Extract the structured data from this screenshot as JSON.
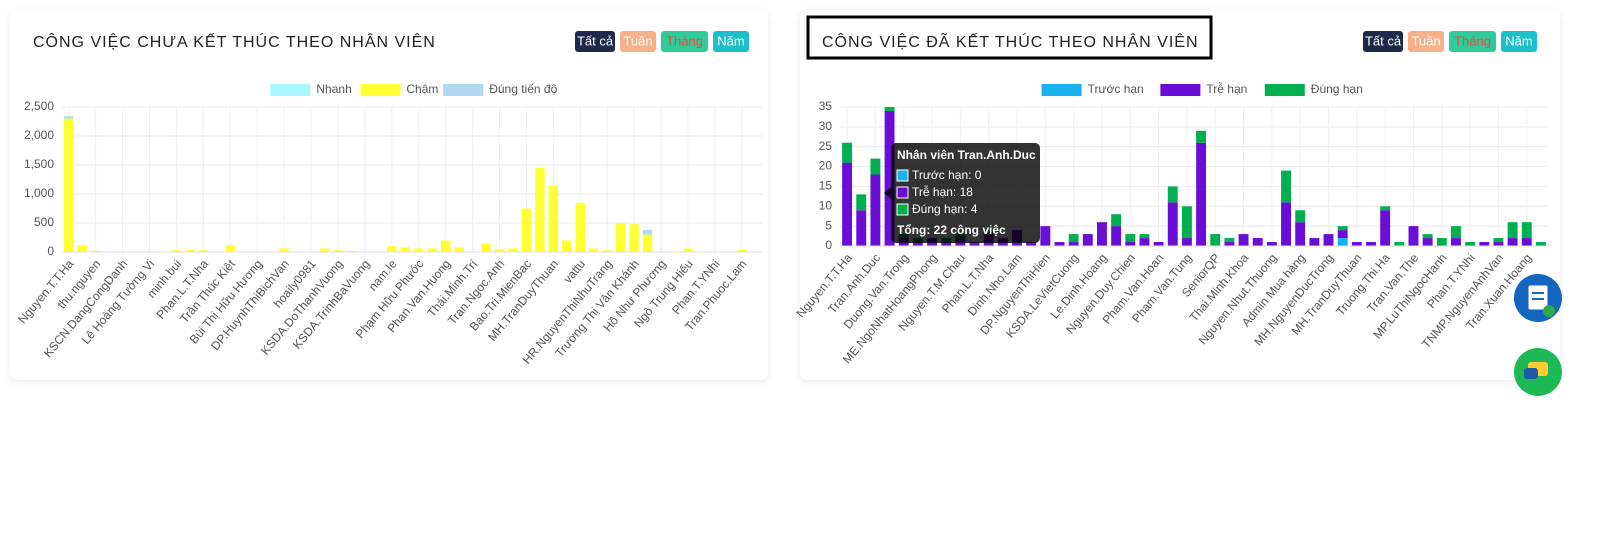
{
  "filters": [
    "Tất cả",
    "Tuần",
    "Tháng",
    "Năm"
  ],
  "chart_data": [
    {
      "type": "bar",
      "stacked": true,
      "title": "CÔNG VIỆC CHƯA KẾT THÚC THEO NHÂN VIÊN",
      "categories": [
        "Nguyen.T.T.Ha",
        null,
        "thu.nguyen",
        null,
        "KSCN.DangCongDanh",
        null,
        "Lê Hoàng Tường Vi",
        null,
        "minh.bui",
        null,
        "Phan.L.T.Nha",
        null,
        "Trần Thúc Kiệt",
        null,
        "Bùi Thị Hữu Hương",
        null,
        "DP.HuynhThiBichVan",
        null,
        "hoaily0981",
        null,
        "KSDA.DoThanhVuong",
        null,
        "KSDA.TrinhBaVuong",
        null,
        "nam.le",
        null,
        "Phạm Hữu Phước",
        null,
        "Phan.Van.Huong",
        null,
        "Thái.Minh.Trí",
        null,
        "Tran.Ngoc.Anh",
        null,
        "Bao.Tri.MienBac",
        null,
        "MH.TranDuyThuan",
        null,
        "vattu",
        null,
        "HR.NguyenThiNhuTrang",
        null,
        "Trương Thị Vân Khánh",
        null,
        "Hồ Như Phương",
        null,
        "Ngô Trung Hiếu",
        null,
        "Phan.T.YNhi",
        null,
        "Tran.Phuoc.Lam",
        null
      ],
      "series": [
        {
          "name": "Nhanh",
          "color": "#aaf6ff",
          "values": [
            0,
            0,
            0,
            0,
            0,
            0,
            0,
            0,
            0,
            0,
            0,
            0,
            0,
            0,
            0,
            0,
            0,
            0,
            0,
            0,
            0,
            0,
            0,
            0,
            0,
            0,
            0,
            0,
            0,
            0,
            0,
            0,
            0,
            0,
            0,
            0,
            0,
            0,
            0,
            0,
            0,
            0,
            0,
            0,
            0,
            0,
            0,
            0,
            0,
            0,
            0,
            0
          ]
        },
        {
          "name": "Chậm",
          "color": "#ffff33",
          "values": [
            2300,
            120,
            20,
            10,
            5,
            5,
            10,
            5,
            30,
            40,
            30,
            10,
            120,
            5,
            5,
            10,
            60,
            5,
            5,
            60,
            30,
            20,
            10,
            5,
            100,
            80,
            60,
            60,
            200,
            80,
            10,
            150,
            50,
            60,
            750,
            1450,
            1150,
            200,
            850,
            60,
            30,
            500,
            480,
            300,
            10,
            5,
            60,
            10,
            5,
            10,
            40,
            10
          ]
        },
        {
          "name": "Đúng tiến độ",
          "color": "#b0d8f0",
          "values": [
            40,
            0,
            0,
            0,
            0,
            0,
            0,
            0,
            0,
            0,
            0,
            0,
            0,
            0,
            0,
            0,
            0,
            0,
            0,
            0,
            0,
            0,
            0,
            0,
            0,
            0,
            0,
            0,
            0,
            0,
            0,
            0,
            0,
            0,
            0,
            0,
            0,
            0,
            0,
            0,
            0,
            0,
            0,
            80,
            0,
            0,
            0,
            0,
            0,
            0,
            0,
            0
          ]
        }
      ],
      "ylim": [
        0,
        2500
      ],
      "yticks": [
        0,
        500,
        {
          "value": 1000,
          "label": "1,000"
        },
        {
          "value": 1500,
          "label": "1,500"
        },
        {
          "value": 2000,
          "label": "2,000"
        },
        {
          "value": 2500,
          "label": "2,500"
        }
      ],
      "grid": true,
      "legend": "top"
    },
    {
      "type": "bar",
      "stacked": true,
      "title": "CÔNG VIỆC ĐÃ KẾT THÚC THEO NHÂN VIÊN",
      "categories": [
        "Nguyen.T.T.Ha",
        null,
        "Tran.Anh.Duc",
        null,
        "Duong.Van.Trong",
        null,
        "ME.NgoNhatHoangPhong",
        null,
        "Nguyen.T.M.Chau",
        null,
        "Phan.L.T.Nha",
        null,
        "Dinh.Nho.Lam",
        null,
        "DP.NguyenThiHien",
        null,
        "KSDA.LeVietCuong",
        null,
        "Le.Dinh.Hoang",
        null,
        "Nguyen.Duy.Chien",
        null,
        "Pham.Van.Hoan",
        null,
        "Pham.Van.Tung",
        null,
        "SeniorQP",
        null,
        "Thai.Minh.Khoa",
        null,
        "Nguyen.Nhut.Thuong",
        null,
        "Admin Mua hàng",
        null,
        "MH.NguyenDucTrong",
        null,
        "MH.TranDuyThuan",
        null,
        "Truong.Thi.Ha",
        null,
        "Tran.Van.The",
        null,
        "MP.LuThiNgocHanh",
        null,
        "Phan.T.YNhi",
        null,
        "TNMP.NguyenAnhVan",
        null,
        "Tran.Xuan.Hoang",
        null
      ],
      "series": [
        {
          "name": "Trước hạn",
          "color": "#1ab2ee",
          "values": [
            0,
            0,
            0,
            0,
            0,
            0,
            0,
            0,
            0,
            0,
            0,
            0,
            0,
            0,
            0,
            0,
            0,
            0,
            0,
            0,
            0,
            0,
            0,
            0,
            0,
            0,
            0,
            0,
            0,
            0,
            0,
            0,
            0,
            0,
            0,
            2,
            0,
            0,
            0,
            0,
            0,
            0,
            0,
            0,
            0,
            0,
            0,
            0,
            0,
            0
          ]
        },
        {
          "name": "Trễ hạn",
          "color": "#6a0dd6",
          "values": [
            21,
            9,
            18,
            34,
            2,
            1,
            2,
            1,
            2,
            1,
            3,
            2,
            4,
            1,
            5,
            1,
            1,
            3,
            6,
            5,
            1,
            2,
            1,
            11,
            2,
            26,
            0,
            1,
            3,
            2,
            1,
            11,
            6,
            2,
            3,
            2,
            1,
            1,
            9,
            0,
            5,
            2,
            0,
            2,
            0,
            1,
            1,
            2,
            2,
            0
          ]
        },
        {
          "name": "Đúng hạn",
          "color": "#00b050",
          "values": [
            5,
            4,
            4,
            1,
            1,
            1,
            0,
            1,
            1,
            0,
            1,
            0,
            0,
            0,
            0,
            0,
            2,
            0,
            0,
            3,
            2,
            1,
            0,
            4,
            8,
            3,
            3,
            1,
            0,
            0,
            0,
            8,
            3,
            0,
            0,
            1,
            0,
            0,
            1,
            1,
            0,
            1,
            2,
            3,
            1,
            0,
            1,
            4,
            4,
            1
          ]
        }
      ],
      "ylim": [
        0,
        35
      ],
      "yticks": [
        0,
        5,
        10,
        15,
        20,
        25,
        30,
        35
      ],
      "grid": true,
      "legend": "top"
    }
  ],
  "tooltip": {
    "title": "Nhân viên Tran.Anh.Duc",
    "lines": [
      "Trước hạn: 0",
      "Trễ hạn: 18",
      "Đúng hạn: 4"
    ],
    "footer": "Tổng: 22 công việc"
  }
}
